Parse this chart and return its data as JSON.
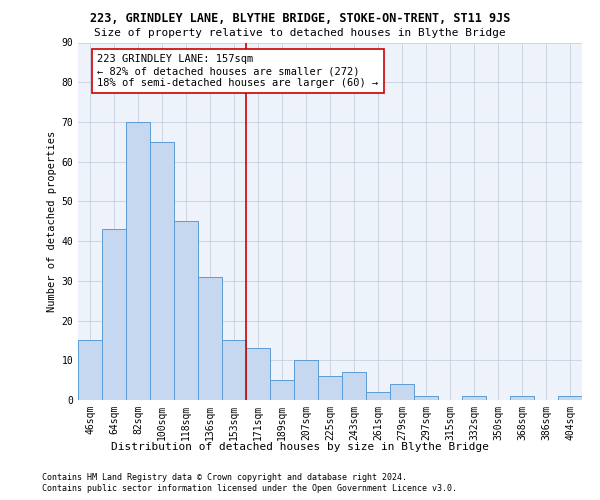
{
  "title1": "223, GRINDLEY LANE, BLYTHE BRIDGE, STOKE-ON-TRENT, ST11 9JS",
  "title2": "Size of property relative to detached houses in Blythe Bridge",
  "xlabel": "Distribution of detached houses by size in Blythe Bridge",
  "ylabel": "Number of detached properties",
  "categories": [
    "46sqm",
    "64sqm",
    "82sqm",
    "100sqm",
    "118sqm",
    "136sqm",
    "153sqm",
    "171sqm",
    "189sqm",
    "207sqm",
    "225sqm",
    "243sqm",
    "261sqm",
    "279sqm",
    "297sqm",
    "315sqm",
    "332sqm",
    "350sqm",
    "368sqm",
    "386sqm",
    "404sqm"
  ],
  "values": [
    15,
    43,
    70,
    65,
    45,
    31,
    15,
    13,
    5,
    10,
    6,
    7,
    2,
    4,
    1,
    0,
    1,
    0,
    1,
    0,
    1
  ],
  "bar_color": "#c5d8f0",
  "bar_edge_color": "#5b9bd5",
  "vline_x": 6.5,
  "vline_color": "#cc0000",
  "annotation_line1": "223 GRINDLEY LANE: 157sqm",
  "annotation_line2": "← 82% of detached houses are smaller (272)",
  "annotation_line3": "18% of semi-detached houses are larger (60) →",
  "annotation_box_color": "#cc0000",
  "ylim": [
    0,
    90
  ],
  "yticks": [
    0,
    10,
    20,
    30,
    40,
    50,
    60,
    70,
    80,
    90
  ],
  "footer1": "Contains HM Land Registry data © Crown copyright and database right 2024.",
  "footer2": "Contains public sector information licensed under the Open Government Licence v3.0.",
  "bg_color": "#eef2fa",
  "grid_color": "#c8cfe0",
  "title1_fontsize": 8.5,
  "title2_fontsize": 8.0,
  "ylabel_fontsize": 7.5,
  "xlabel_fontsize": 8.0,
  "tick_fontsize": 7.0,
  "annot_fontsize": 7.5,
  "footer_fontsize": 6.0
}
